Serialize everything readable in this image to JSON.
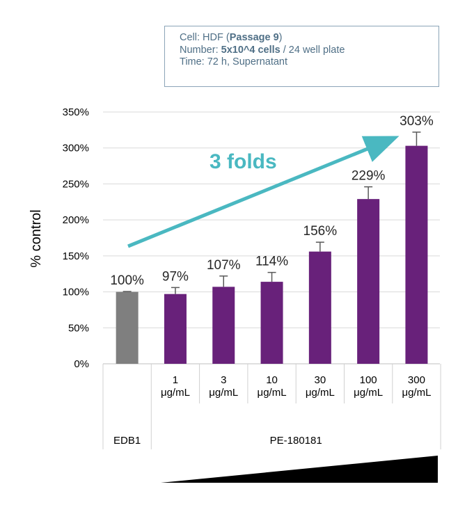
{
  "info": {
    "line1_prefix": "Cell: HDF (",
    "line1_bold": "Passage 9",
    "line1_suffix": ")",
    "line2_prefix": "Number: ",
    "line2_bold": "5x10^4 cells",
    "line2_suffix": " / 24 well plate",
    "line3": "Time: 72 h, Supernatant"
  },
  "annotation": {
    "text": "3 folds",
    "color": "#4ab8c1"
  },
  "colors": {
    "control": "#7f7f7f",
    "treatment": "#68217a",
    "grid": "#d9d9d9"
  },
  "chart_data": {
    "type": "bar",
    "ylabel": "% control",
    "ylim": [
      0,
      350
    ],
    "yticks": [
      "0%",
      "50%",
      "100%",
      "150%",
      "200%",
      "250%",
      "300%",
      "350%"
    ],
    "categories": [
      "",
      "1 μg/mL",
      "3 μg/mL",
      "10 μg/mL",
      "30 μg/mL",
      "100 μg/mL",
      "300 μg/mL"
    ],
    "values": [
      100,
      97,
      107,
      114,
      156,
      229,
      303
    ],
    "errors": [
      0.5,
      9,
      15,
      13,
      13,
      17,
      19
    ],
    "data_labels": [
      "100%",
      "97%",
      "107%",
      "114%",
      "156%",
      "229%",
      "303%"
    ],
    "group_labels": [
      "EDB1",
      "PE-180181"
    ],
    "grid": true
  }
}
